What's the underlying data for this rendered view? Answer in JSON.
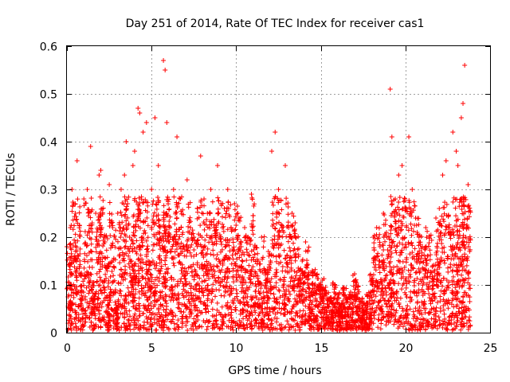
{
  "chart_data": {
    "type": "scatter",
    "title": "Day 251 of 2014, Rate Of TEC Index for receiver cas1",
    "xlabel": "GPS time / hours",
    "ylabel": "ROTI / TECUs",
    "xlim": [
      0,
      25
    ],
    "ylim": [
      0,
      0.6
    ],
    "xticks": [
      "0",
      "5",
      "10",
      "15",
      "20",
      "25"
    ],
    "yticks": [
      "0",
      "0.1",
      "0.2",
      "0.3",
      "0.4",
      "0.5",
      "0.6"
    ],
    "grid": true,
    "marker": "+",
    "color": "#ff0000",
    "series": [
      {
        "name": "ROTI",
        "x": [
          0.0,
          0.2,
          0.3,
          0.5,
          0.6,
          0.8,
          1.0,
          1.2,
          1.4,
          1.5,
          1.7,
          1.9,
          2.0,
          2.2,
          2.4,
          2.5,
          2.7,
          2.9,
          3.0,
          3.2,
          3.4,
          3.5,
          3.7,
          3.9,
          4.0,
          4.2,
          4.3,
          4.5,
          4.7,
          4.8,
          5.0,
          5.2,
          5.4,
          5.5,
          5.7,
          5.8,
          5.9,
          6.1,
          6.3,
          6.5,
          6.7,
          6.9,
          7.1,
          7.3,
          7.5,
          7.7,
          7.9,
          8.1,
          8.3,
          8.5,
          8.7,
          8.9,
          9.1,
          9.3,
          9.5,
          9.7,
          9.9,
          10.1,
          10.3,
          10.5,
          10.7,
          10.9,
          11.1,
          11.3,
          11.5,
          11.7,
          11.9,
          12.1,
          12.3,
          12.5,
          12.7,
          12.9,
          13.1,
          13.3,
          13.5,
          13.7,
          13.9,
          14.1,
          14.3,
          14.5,
          14.7,
          14.9,
          15.1,
          15.3,
          15.5,
          15.7,
          15.9,
          16.1,
          16.3,
          16.5,
          16.7,
          16.9,
          17.1,
          17.3,
          17.5,
          17.7,
          17.9,
          18.1,
          18.3,
          18.5,
          18.7,
          18.9,
          19.1,
          19.2,
          19.4,
          19.6,
          19.8,
          20.0,
          20.2,
          20.4,
          20.6,
          20.8,
          21.0,
          21.2,
          21.4,
          21.6,
          21.8,
          22.0,
          22.2,
          22.4,
          22.6,
          22.8,
          23.0,
          23.1,
          23.3,
          23.4,
          23.5,
          23.7
        ],
        "y": [
          0.18,
          0.22,
          0.3,
          0.25,
          0.36,
          0.12,
          0.28,
          0.3,
          0.39,
          0.1,
          0.25,
          0.33,
          0.34,
          0.2,
          0.14,
          0.31,
          0.22,
          0.05,
          0.25,
          0.3,
          0.33,
          0.4,
          0.2,
          0.35,
          0.38,
          0.47,
          0.46,
          0.42,
          0.44,
          0.15,
          0.3,
          0.45,
          0.35,
          0.22,
          0.57,
          0.55,
          0.44,
          0.2,
          0.3,
          0.41,
          0.28,
          0.18,
          0.32,
          0.22,
          0.2,
          0.26,
          0.37,
          0.28,
          0.25,
          0.3,
          0.22,
          0.35,
          0.27,
          0.26,
          0.3,
          0.22,
          0.27,
          0.25,
          0.18,
          0.22,
          0.2,
          0.29,
          0.18,
          0.15,
          0.2,
          0.13,
          0.17,
          0.38,
          0.42,
          0.3,
          0.22,
          0.35,
          0.22,
          0.25,
          0.2,
          0.13,
          0.15,
          0.19,
          0.1,
          0.13,
          0.12,
          0.1,
          0.11,
          0.08,
          0.07,
          0.1,
          0.08,
          0.06,
          0.09,
          0.07,
          0.08,
          0.12,
          0.1,
          0.07,
          0.06,
          0.08,
          0.12,
          0.2,
          0.22,
          0.18,
          0.25,
          0.2,
          0.51,
          0.41,
          0.28,
          0.33,
          0.35,
          0.26,
          0.41,
          0.3,
          0.24,
          0.2,
          0.18,
          0.22,
          0.2,
          0.14,
          0.24,
          0.26,
          0.33,
          0.36,
          0.22,
          0.42,
          0.38,
          0.35,
          0.45,
          0.48,
          0.56,
          0.31
        ],
        "density_note": ""
      }
    ]
  }
}
